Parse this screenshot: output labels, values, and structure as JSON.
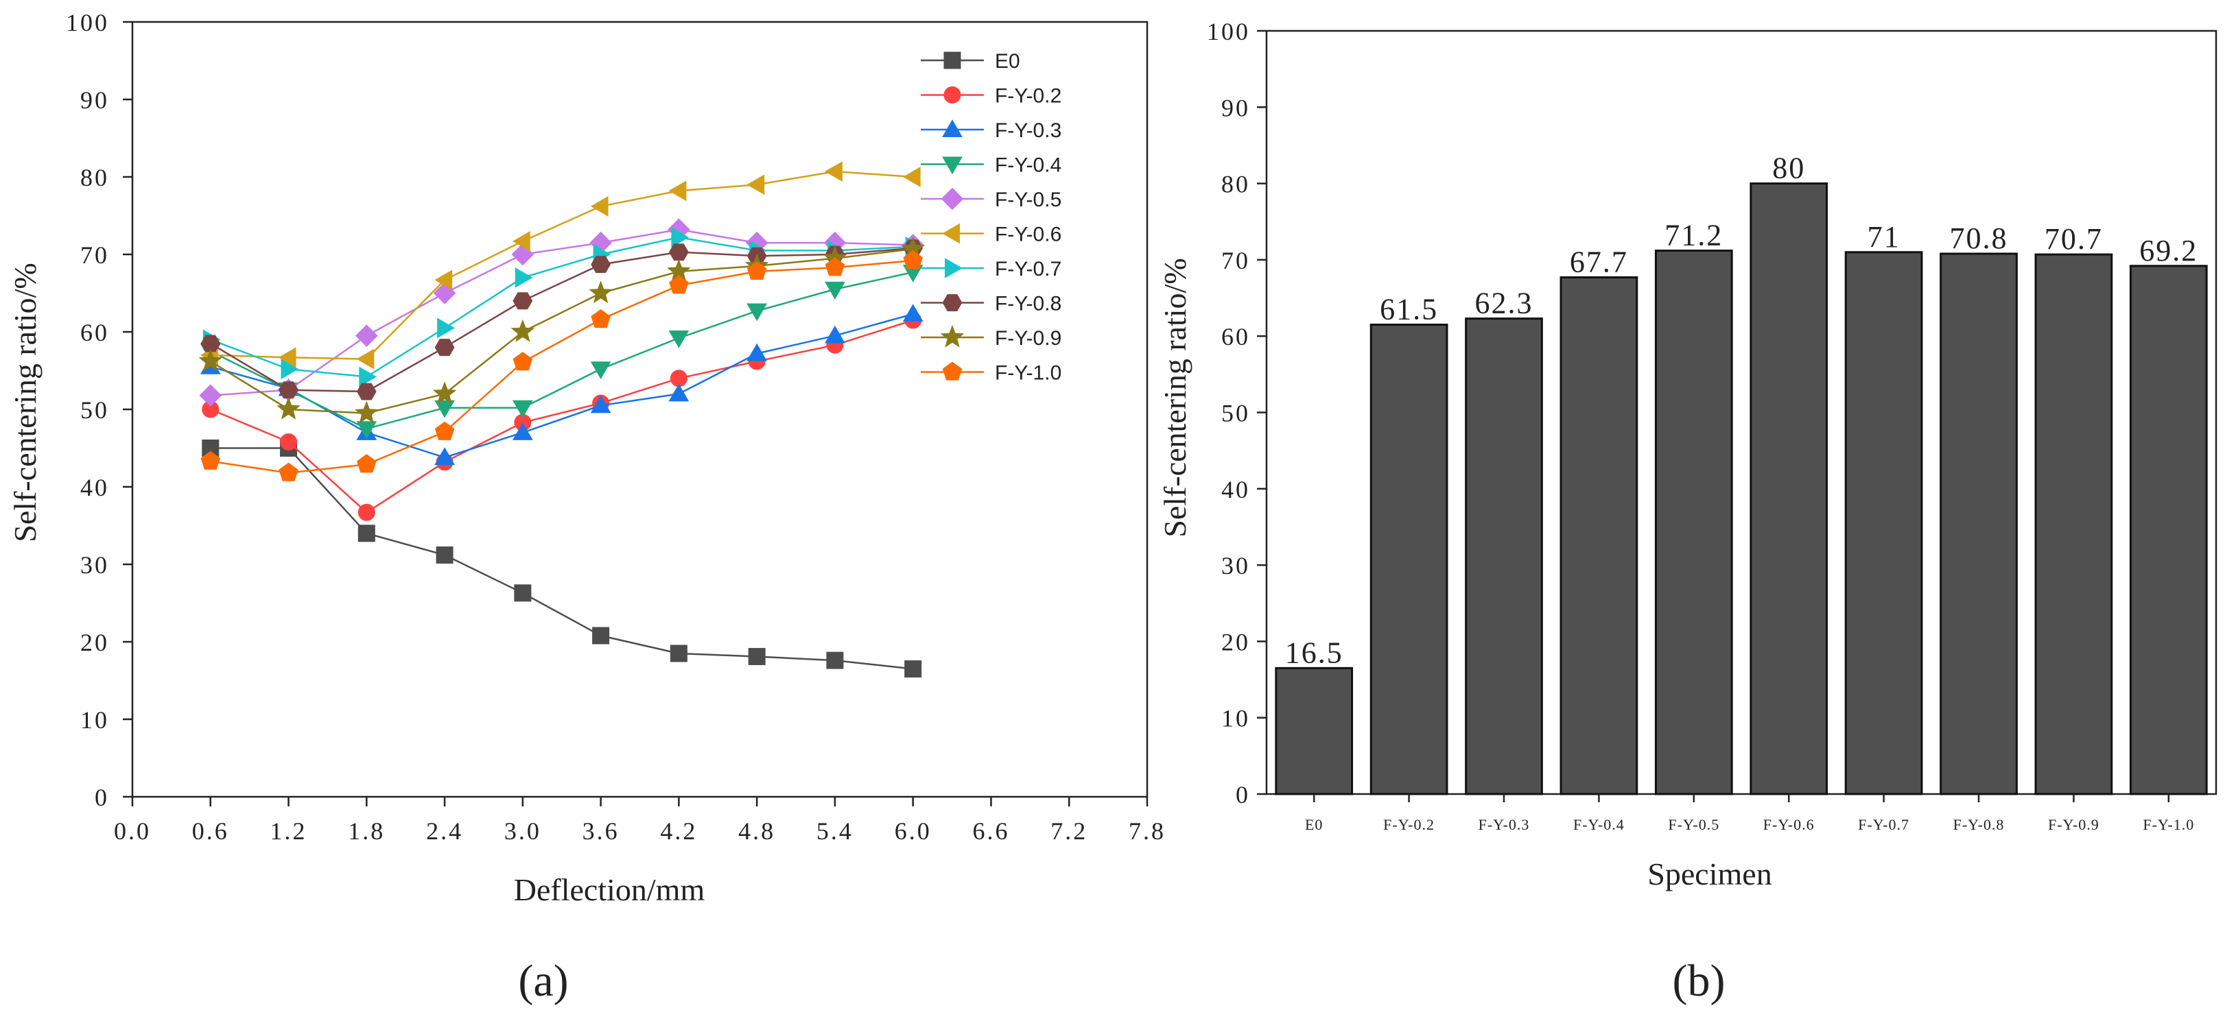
{
  "chart_data": [
    {
      "panel_label": "(a)",
      "type": "line",
      "title": "",
      "xlabel": "Deflection/mm",
      "ylabel": "Self-centering ratio/%",
      "xlim": [
        0.0,
        7.8
      ],
      "ylim": [
        0,
        100
      ],
      "x_ticks": [
        "0.0",
        "0.6",
        "1.2",
        "1.8",
        "2.4",
        "3.0",
        "3.6",
        "4.2",
        "4.8",
        "5.4",
        "6.0",
        "6.6",
        "7.2",
        "7.8"
      ],
      "y_ticks": [
        "0",
        "10",
        "20",
        "30",
        "40",
        "50",
        "60",
        "70",
        "80",
        "90",
        "100"
      ],
      "legend_position": "top-right",
      "x": [
        0.6,
        1.2,
        1.8,
        2.4,
        3.0,
        3.6,
        4.2,
        4.8,
        5.4,
        6.0
      ],
      "series": [
        {
          "name": "E0",
          "color": "#4d4d4d",
          "marker": "square",
          "values": [
            45,
            45,
            34,
            31.2,
            26.3,
            20.8,
            18.5,
            18.1,
            17.6,
            16.5
          ]
        },
        {
          "name": "F-Y-0.2",
          "color": "#ff4040",
          "marker": "circle",
          "values": [
            50,
            45.8,
            36.7,
            43.2,
            48.3,
            50.8,
            54,
            56.2,
            58.3,
            61.5
          ]
        },
        {
          "name": "F-Y-0.3",
          "color": "#1874e8",
          "marker": "triangle-up",
          "values": [
            55.5,
            52.7,
            47,
            43.8,
            47,
            50.5,
            52,
            57.2,
            59.5,
            62.3
          ]
        },
        {
          "name": "F-Y-0.4",
          "color": "#1fa97a",
          "marker": "triangle-down",
          "values": [
            57.5,
            52.5,
            47.5,
            50.2,
            50.2,
            55.2,
            59.2,
            62.7,
            65.5,
            67.7
          ]
        },
        {
          "name": "F-Y-0.5",
          "color": "#c678e8",
          "marker": "diamond",
          "values": [
            51.8,
            52.5,
            59.5,
            65,
            70,
            71.5,
            73.2,
            71.5,
            71.5,
            71.2
          ]
        },
        {
          "name": "F-Y-0.6",
          "color": "#d4a017",
          "marker": "triangle-left",
          "values": [
            57,
            56.7,
            56.5,
            66.7,
            71.7,
            76.2,
            78.2,
            79,
            80.7,
            80
          ]
        },
        {
          "name": "F-Y-0.7",
          "color": "#17c4c9",
          "marker": "triangle-right",
          "values": [
            59,
            55.2,
            54.2,
            60.5,
            67,
            70,
            72.2,
            70.5,
            70.5,
            71
          ]
        },
        {
          "name": "F-Y-0.8",
          "color": "#7d4444",
          "marker": "hexagon",
          "values": [
            58.5,
            52.5,
            52.3,
            58,
            64,
            68.7,
            70.3,
            69.8,
            70,
            70.8
          ]
        },
        {
          "name": "F-Y-0.9",
          "color": "#8a7a18",
          "marker": "star",
          "values": [
            56.2,
            50,
            49.5,
            52,
            60,
            65,
            67.8,
            68.5,
            69.5,
            70.7
          ]
        },
        {
          "name": "F-Y-1.0",
          "color": "#ff6a00",
          "marker": "pentagon",
          "values": [
            43.3,
            41.8,
            42.9,
            47.1,
            56.1,
            61.6,
            66,
            67.8,
            68.3,
            69.2
          ]
        }
      ]
    },
    {
      "panel_label": "(b)",
      "type": "bar",
      "title": "",
      "xlabel": "Specimen",
      "ylabel": "Self-centering ratio/%",
      "ylim": [
        0,
        100
      ],
      "y_ticks": [
        "0",
        "10",
        "20",
        "30",
        "40",
        "50",
        "60",
        "70",
        "80",
        "90",
        "100"
      ],
      "bar_color": "#505050",
      "categories": [
        "E0",
        "F-Y-0.2",
        "F-Y-0.3",
        "F-Y-0.4",
        "F-Y-0.5",
        "F-Y-0.6",
        "F-Y-0.7",
        "F-Y-0.8",
        "F-Y-0.9",
        "F-Y-1.0"
      ],
      "values": [
        16.5,
        61.5,
        62.3,
        67.7,
        71.2,
        80,
        71,
        70.8,
        70.7,
        69.2
      ],
      "value_labels": [
        "16.5",
        "61.5",
        "62.3",
        "67.7",
        "71.2",
        "80",
        "71",
        "70.8",
        "70.7",
        "69.2"
      ]
    }
  ]
}
